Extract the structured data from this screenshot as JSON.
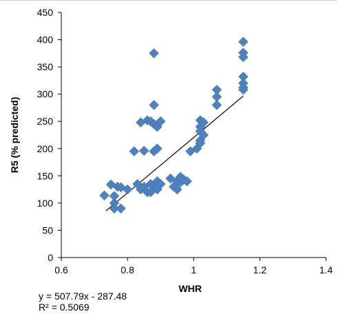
{
  "chart_data": {
    "type": "scatter",
    "xlabel": "WHR",
    "ylabel": "R5 (% predicted)",
    "xlim": [
      0.6,
      1.4
    ],
    "ylim": [
      0,
      450
    ],
    "x_ticks": [
      "0.6",
      "0.8",
      "1",
      "1.2",
      "1.4"
    ],
    "y_ticks": [
      "0",
      "50",
      "100",
      "150",
      "200",
      "250",
      "300",
      "350",
      "400",
      "450"
    ],
    "grid": false,
    "marker_color": "#4f81bd",
    "trendline_color": "#000000",
    "series": [
      {
        "points": [
          [
            0.73,
            114
          ],
          [
            0.75,
            134
          ],
          [
            0.76,
            113
          ],
          [
            0.76,
            100
          ],
          [
            0.76,
            90
          ],
          [
            0.77,
            130
          ],
          [
            0.78,
            129
          ],
          [
            0.78,
            90
          ],
          [
            0.8,
            125
          ],
          [
            0.82,
            195
          ],
          [
            0.83,
            135
          ],
          [
            0.84,
            125
          ],
          [
            0.84,
            248
          ],
          [
            0.85,
            196
          ],
          [
            0.85,
            130
          ],
          [
            0.86,
            252
          ],
          [
            0.86,
            120
          ],
          [
            0.87,
            250
          ],
          [
            0.87,
            135
          ],
          [
            0.87,
            120
          ],
          [
            0.88,
            375
          ],
          [
            0.88,
            280
          ],
          [
            0.88,
            245
          ],
          [
            0.88,
            195
          ],
          [
            0.88,
            130
          ],
          [
            0.89,
            240
          ],
          [
            0.89,
            200
          ],
          [
            0.89,
            140
          ],
          [
            0.89,
            125
          ],
          [
            0.9,
            250
          ],
          [
            0.9,
            135
          ],
          [
            0.93,
            145
          ],
          [
            0.94,
            130
          ],
          [
            0.95,
            140
          ],
          [
            0.95,
            125
          ],
          [
            0.96,
            138
          ],
          [
            0.96,
            148
          ],
          [
            0.97,
            143
          ],
          [
            0.98,
            140
          ],
          [
            0.99,
            195
          ],
          [
            1.01,
            200
          ],
          [
            1.02,
            252
          ],
          [
            1.02,
            240
          ],
          [
            1.02,
            232
          ],
          [
            1.02,
            215
          ],
          [
            1.02,
            210
          ],
          [
            1.03,
            225
          ],
          [
            1.03,
            248
          ],
          [
            1.07,
            308
          ],
          [
            1.07,
            295
          ],
          [
            1.07,
            280
          ],
          [
            1.15,
            396
          ],
          [
            1.15,
            376
          ],
          [
            1.15,
            368
          ],
          [
            1.15,
            332
          ],
          [
            1.15,
            320
          ],
          [
            1.15,
            312
          ],
          [
            1.15,
            308
          ]
        ]
      }
    ],
    "trendline": {
      "x_range": [
        0.735,
        1.15
      ],
      "slope": 507.79,
      "intercept": -287.48
    },
    "equation": "y = 507.79x - 287.48",
    "r_squared": "R² = 0.5069"
  }
}
